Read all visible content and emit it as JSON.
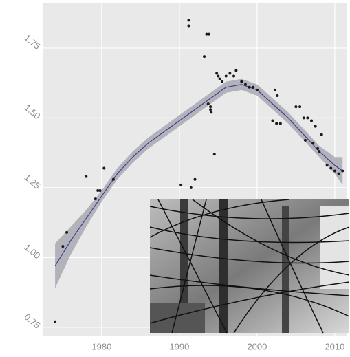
{
  "chart_data": {
    "type": "scatter",
    "x": [
      1974,
      1975,
      1975.5,
      1978,
      1979.2,
      1979.5,
      1979.8,
      1980.3,
      1981.5,
      1990.2,
      1991.5,
      1992,
      1991.2,
      1991.2,
      1993.5,
      1993.8,
      1993.2,
      1994,
      1994.1,
      1994.5,
      1993.7,
      1994.8,
      1995,
      1995.2,
      1996,
      1996.5,
      1997,
      1997.3,
      1998,
      1998.5,
      1999,
      1999.5,
      2000,
      2002,
      2002.5,
      2003,
      2002.3,
      2002.6,
      2005,
      2005.5,
      2006,
      2006.5,
      2007,
      2007.5,
      2006.2,
      2007.2,
      2007.8,
      2008,
      2008.3,
      2009,
      2009.5,
      2010,
      2010.5,
      2011,
      1994,
      1995.5
    ],
    "values": [
      0.77,
      1.04,
      1.09,
      1.29,
      1.21,
      1.24,
      1.24,
      1.32,
      1.28,
      1.26,
      1.25,
      1.28,
      1.85,
      1.83,
      1.8,
      1.8,
      1.72,
      1.54,
      1.52,
      1.37,
      1.55,
      1.66,
      1.65,
      1.64,
      1.65,
      1.66,
      1.65,
      1.67,
      1.63,
      1.62,
      1.61,
      1.61,
      1.6,
      1.49,
      1.48,
      1.48,
      1.6,
      1.58,
      1.54,
      1.54,
      1.5,
      1.5,
      1.49,
      1.47,
      1.42,
      1.41,
      1.39,
      1.38,
      1.44,
      1.33,
      1.32,
      1.31,
      1.3,
      1.31,
      1.53,
      1.63
    ],
    "color": "#1a1a1a",
    "smooth": {
      "color": "#3f3f8f",
      "band_color": "#9a9aa6",
      "x": [
        1974,
        1976,
        1978,
        1980,
        1982,
        1984,
        1986,
        1988,
        1990,
        1992,
        1994,
        1996,
        1998,
        2000,
        2002,
        2004,
        2006,
        2008,
        2010,
        2011
      ],
      "values": [
        0.97,
        1.06,
        1.14,
        1.22,
        1.3,
        1.36,
        1.41,
        1.45,
        1.49,
        1.53,
        1.57,
        1.61,
        1.62,
        1.6,
        1.55,
        1.5,
        1.44,
        1.38,
        1.33,
        1.31
      ],
      "lower": [
        0.89,
        1.01,
        1.11,
        1.2,
        1.28,
        1.34,
        1.39,
        1.43,
        1.47,
        1.51,
        1.55,
        1.59,
        1.6,
        1.58,
        1.53,
        1.48,
        1.42,
        1.36,
        1.3,
        1.26
      ],
      "upper": [
        1.05,
        1.11,
        1.17,
        1.24,
        1.32,
        1.38,
        1.43,
        1.47,
        1.51,
        1.55,
        1.59,
        1.63,
        1.64,
        1.62,
        1.57,
        1.52,
        1.46,
        1.4,
        1.36,
        1.36
      ]
    },
    "xlim": [
      1972.4,
      2011.6
    ],
    "xticks": [
      1980,
      1990,
      2000,
      2010
    ],
    "ylim": [
      0.72,
      1.91
    ],
    "yticks": [
      {
        "value": 0.75,
        "label": "0.75"
      },
      {
        "value": 1.0,
        "label": "1.00"
      },
      {
        "value": 1.25,
        "label": "1.25"
      },
      {
        "value": 1.5,
        "label": "1.50"
      },
      {
        "value": 1.75,
        "label": "1.75"
      }
    ],
    "grid": true
  }
}
